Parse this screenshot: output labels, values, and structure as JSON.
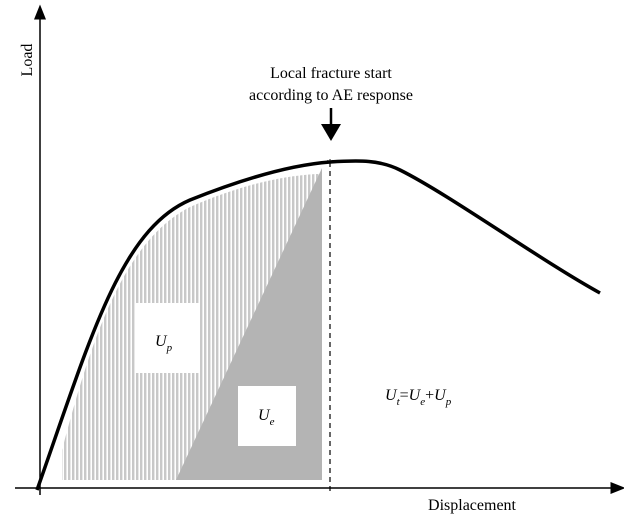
{
  "axes": {
    "y_label": "Load",
    "x_label": "Displacement"
  },
  "annotation": {
    "line1": "Local fracture start",
    "line2": "according to AE response"
  },
  "regions": {
    "plastic": {
      "base": "U",
      "sub": "p"
    },
    "elastic": {
      "base": "U",
      "sub": "e"
    }
  },
  "formula": [
    {
      "base": "U",
      "sub": "t"
    },
    {
      "op": "="
    },
    {
      "base": "U",
      "sub": "e"
    },
    {
      "op": "+"
    },
    {
      "base": "U",
      "sub": "p"
    }
  ]
}
